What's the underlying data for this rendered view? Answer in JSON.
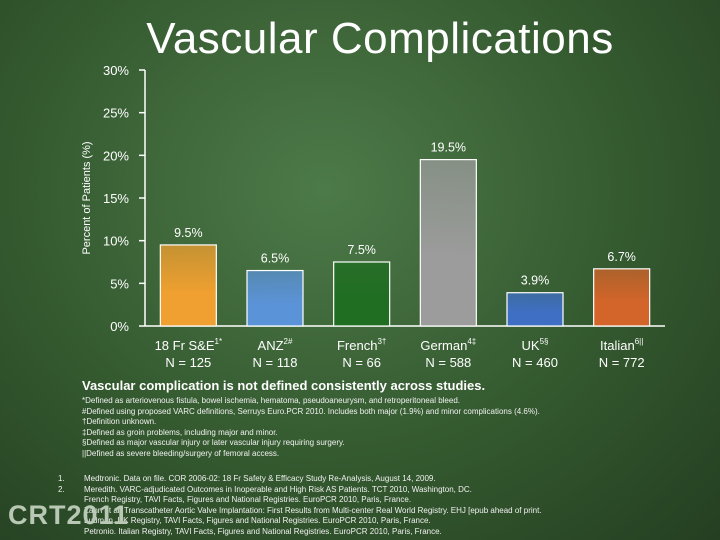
{
  "title": "Vascular Complications",
  "chart_data": {
    "type": "bar",
    "ylabel": "Percent of Patients (%)",
    "ylim": [
      0,
      30
    ],
    "yticks": [
      "0%",
      "5%",
      "10%",
      "15%",
      "20%",
      "25%",
      "30%"
    ],
    "categories": [
      {
        "name": "18 Fr S&E",
        "sup": "1*",
        "n": "N = 125"
      },
      {
        "name": "ANZ",
        "sup": "2#",
        "n": "N = 118"
      },
      {
        "name": "French",
        "sup": "3†",
        "n": "N = 66"
      },
      {
        "name": "German",
        "sup": "4‡",
        "n": "N = 588"
      },
      {
        "name": "UK",
        "sup": "5§",
        "n": "N = 460"
      },
      {
        "name": "Italian",
        "sup": "6||",
        "n": "N = 772"
      }
    ],
    "values": [
      9.5,
      6.5,
      7.5,
      19.5,
      3.9,
      6.7
    ],
    "value_labels": [
      "9.5%",
      "6.5%",
      "7.5%",
      "19.5%",
      "3.9%",
      "6.7%"
    ],
    "colors": [
      "#f0a030",
      "#5b93d8",
      "#1f6e22",
      "#9c9c9c",
      "#3f6fc4",
      "#d4652a"
    ]
  },
  "note": "Vascular complication is not defined consistently across studies.",
  "definitions": [
    "*Defined as arteriovenous fistula, bowel ischemia, hematoma, pseudoaneurysm, and retroperitoneal bleed.",
    "#Defined using proposed VARC definitions, Serruys Euro.PCR 2010.  Includes both major (1.9%) and minor complications (4.6%).",
    "†Definition unknown.",
    "‡Defined as groin problems, including major and minor.",
    "§Defined as major vascular injury or later vascular injury requiring surgery.",
    "||Defined as severe bleeding/surgery of femoral access."
  ],
  "references": [
    {
      "num": "1.",
      "text": "Medtronic. Data on file. COR 2006-02: 18 Fr Safety & Efficacy Study Re-Analysis, August 14, 2009."
    },
    {
      "num": "2.",
      "text": "Meredith. VARC-adjudicated Outcomes in Inoperable and High Risk AS Patients.  TCT 2010, Washington, DC."
    },
    {
      "num": "",
      "text": "French Registry, TAVI Facts, Figures and National Registries. EuroPCR 2010, Paris, France."
    },
    {
      "num": "",
      "text": "Zahn et al. Transcatheter Aortic Valve Implantation: First Results from Multi-center Real World Registry.  EHJ [epub ahead of print."
    },
    {
      "num": "",
      "text": "Ludman. UK Registry, TAVI Facts, Figures and National Registries. EuroPCR 2010, Paris, France."
    },
    {
      "num": "",
      "text": "Petronio. Italian Registry, TAVI Facts, Figures and National Registries. EuroPCR 2010, Paris, France."
    }
  ],
  "logo": "CRT2011"
}
